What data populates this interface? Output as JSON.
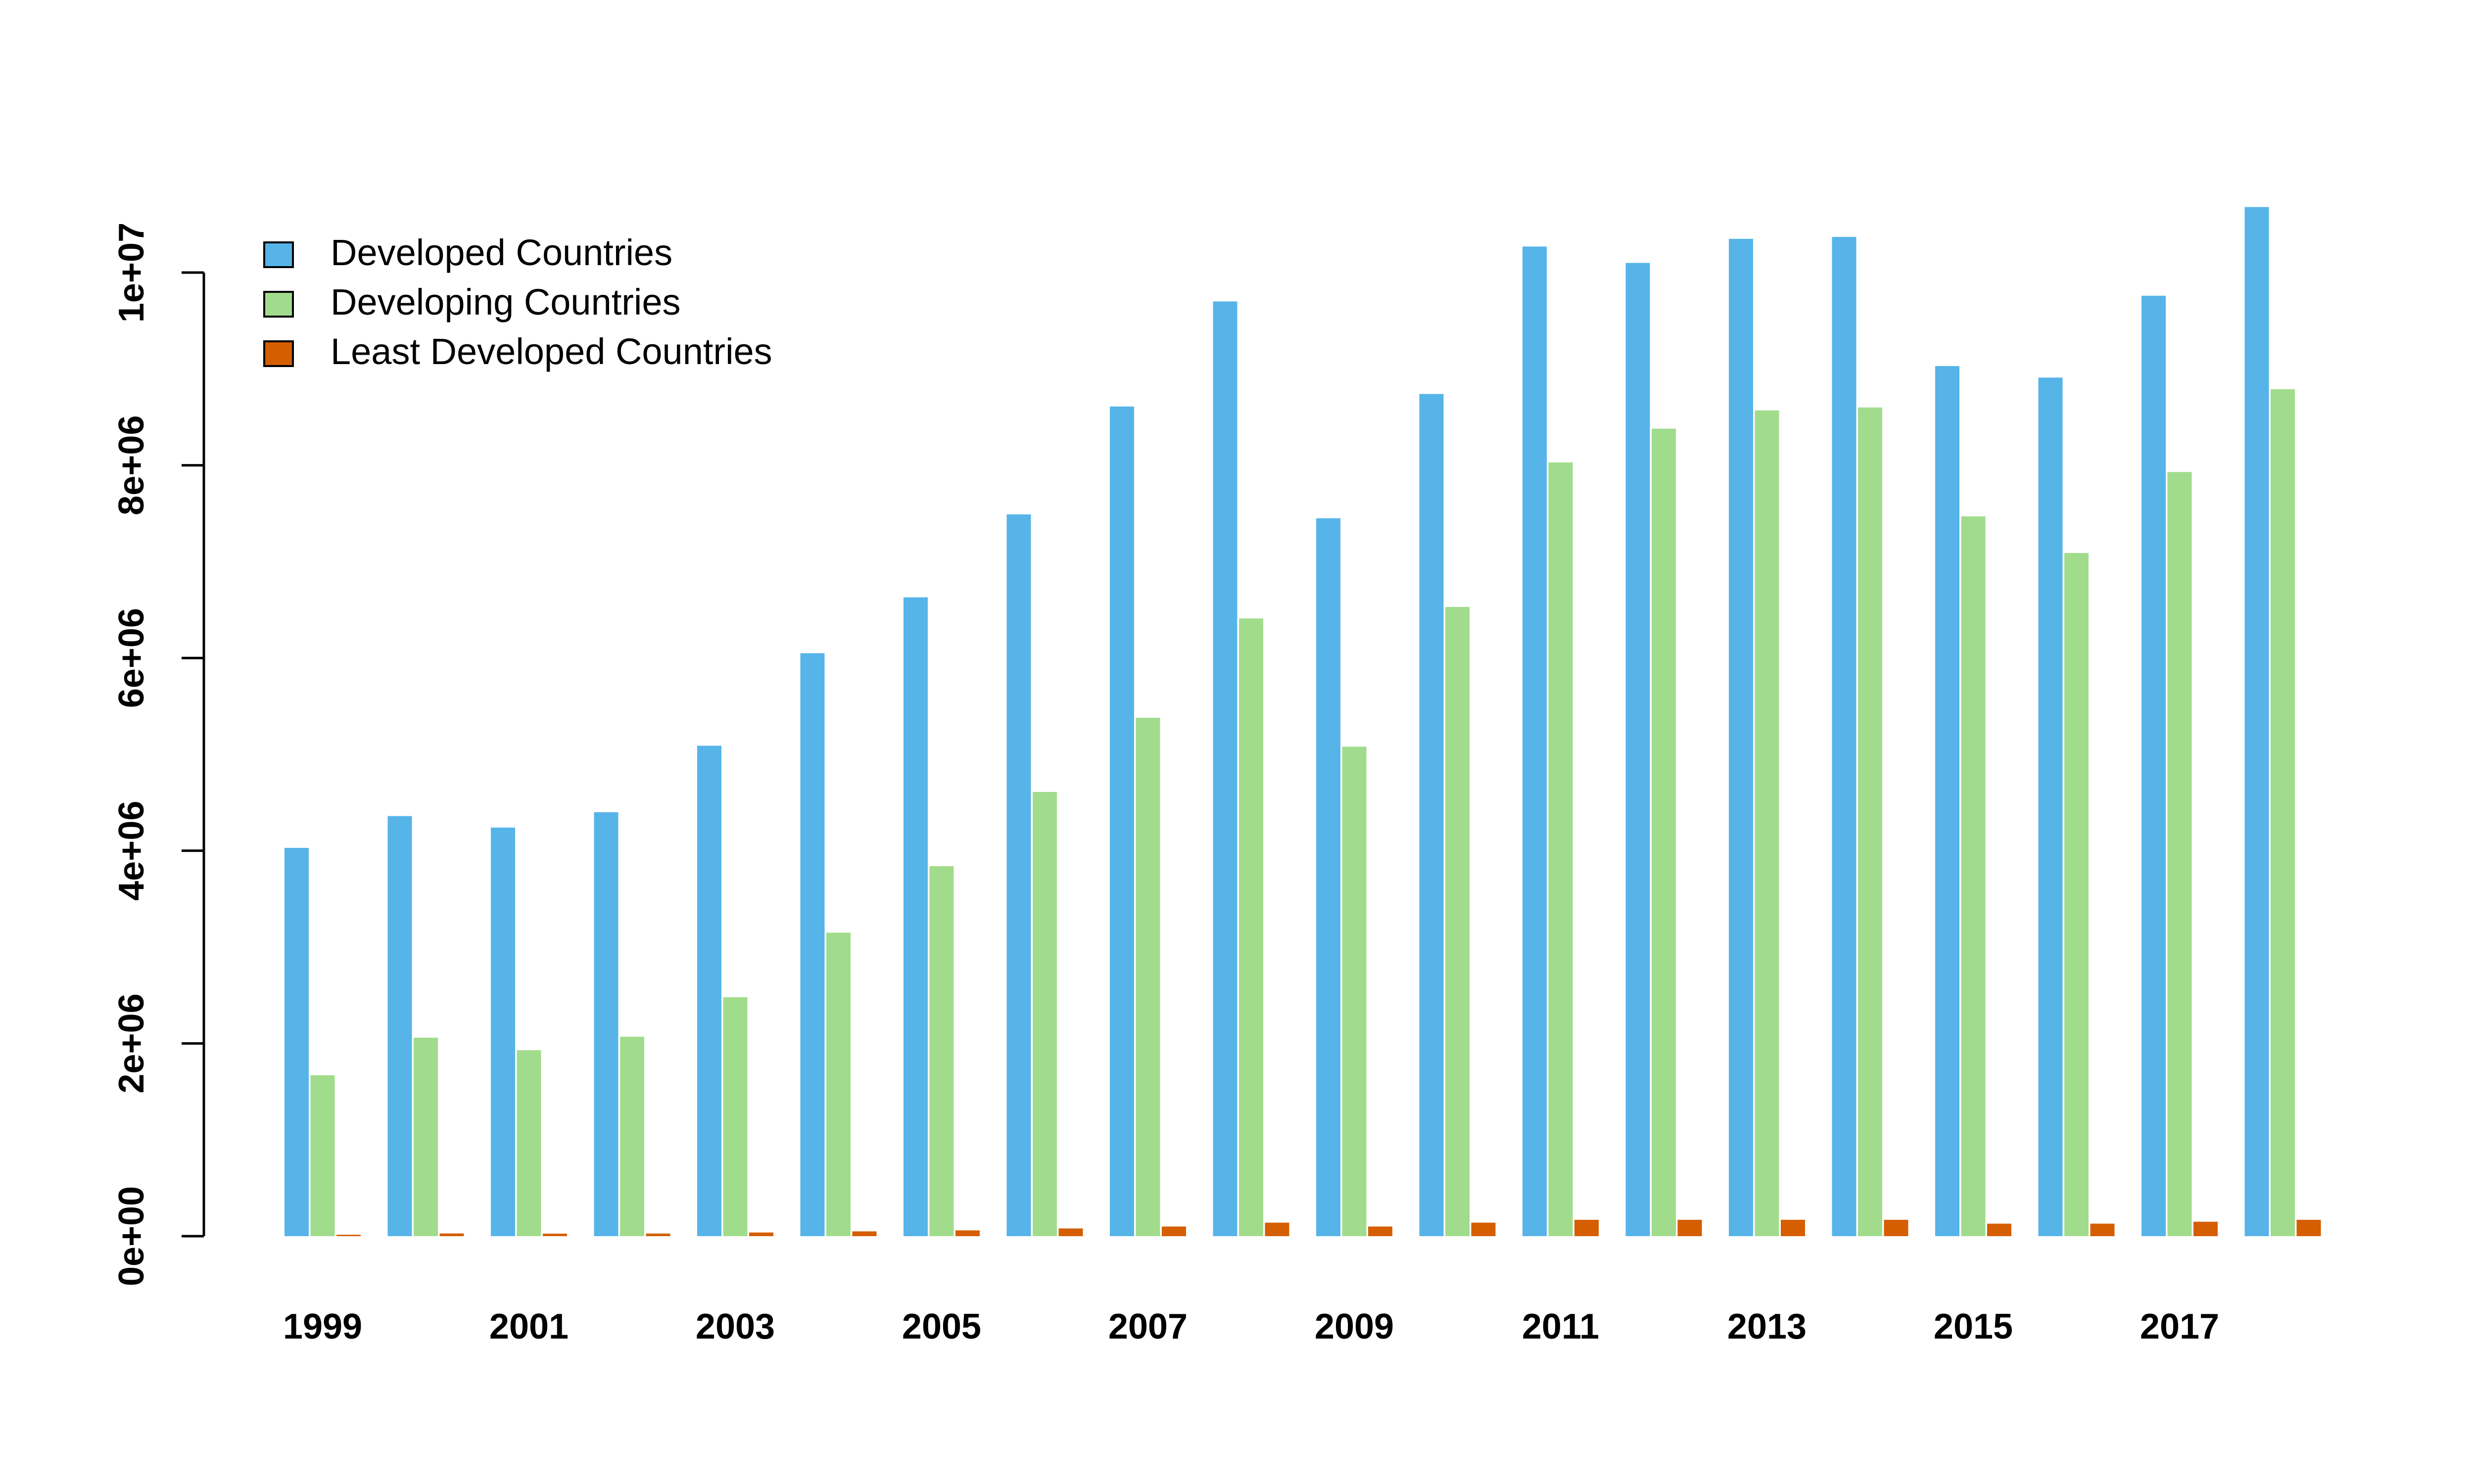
{
  "chart_data": {
    "type": "bar",
    "title": "",
    "xlabel": "",
    "ylabel": "",
    "categories": [
      "1999",
      "2000",
      "2001",
      "2002",
      "2003",
      "2004",
      "2005",
      "2006",
      "2007",
      "2008",
      "2009",
      "2010",
      "2011",
      "2012",
      "2013",
      "2014",
      "2015",
      "2016",
      "2017",
      "2018"
    ],
    "x_tick_labels": [
      "1999",
      "2001",
      "2003",
      "2005",
      "2007",
      "2009",
      "2011",
      "2013",
      "2015",
      "2017"
    ],
    "y_ticks": [
      0,
      2000000,
      4000000,
      6000000,
      8000000,
      10000000
    ],
    "y_tick_labels": [
      "0e+00",
      "2e+06",
      "4e+06",
      "6e+06",
      "8e+06",
      "1e+07"
    ],
    "ylim": [
      0,
      10800000
    ],
    "grid": false,
    "legend_position": "top-left",
    "series": [
      {
        "name": "Developed Countries",
        "color": "#56B4E9",
        "values": [
          4030000,
          4360000,
          4240000,
          4400000,
          5090000,
          6050000,
          6630000,
          7490000,
          8610000,
          9700000,
          7450000,
          8740000,
          10270000,
          10100000,
          10350000,
          10370000,
          9030000,
          8910000,
          9760000,
          10680000
        ]
      },
      {
        "name": "Developing Countries",
        "color": "#A1DC8C",
        "values": [
          1670000,
          2060000,
          1930000,
          2070000,
          2480000,
          3150000,
          3840000,
          4610000,
          5380000,
          6410000,
          5080000,
          6530000,
          8030000,
          8380000,
          8570000,
          8600000,
          7470000,
          7090000,
          7930000,
          8790000
        ]
      },
      {
        "name": "Least Developed Countries",
        "color": "#D55E00",
        "values": [
          15000,
          28000,
          26000,
          27000,
          38000,
          50000,
          60000,
          80000,
          100000,
          140000,
          100000,
          140000,
          170000,
          170000,
          170000,
          170000,
          130000,
          130000,
          150000,
          170000
        ]
      }
    ]
  }
}
